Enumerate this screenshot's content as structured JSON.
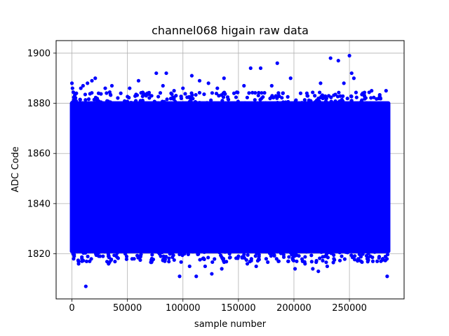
{
  "chart_data": {
    "type": "scatter",
    "title": "channel068 higain raw data",
    "xlabel": "sample number",
    "ylabel": "ADC Code",
    "xlim": [
      -14250,
      299250
    ],
    "ylim": [
      1802,
      1905
    ],
    "x_ticks": [
      0,
      50000,
      100000,
      150000,
      200000,
      250000
    ],
    "y_ticks": [
      1820,
      1840,
      1860,
      1880,
      1900
    ],
    "grid": true,
    "marker_color": "#0000ff",
    "dense_band": {
      "x_range": [
        0,
        285000
      ],
      "y_range": [
        1821,
        1880
      ],
      "note_values": "data points span samples 0 to ~285000 with ADC codes densely filling ~1821–1880"
    },
    "points": [
      [
        0,
        1888
      ],
      [
        500,
        1886
      ],
      [
        1500,
        1818
      ],
      [
        2000,
        1819
      ],
      [
        4000,
        1884
      ],
      [
        6000,
        1816
      ],
      [
        8000,
        1886
      ],
      [
        9000,
        1818
      ],
      [
        10000,
        1887
      ],
      [
        12500,
        1807
      ],
      [
        14000,
        1888
      ],
      [
        16000,
        1817
      ],
      [
        18000,
        1889
      ],
      [
        20000,
        1821
      ],
      [
        21000,
        1890
      ],
      [
        24000,
        1884
      ],
      [
        28000,
        1819
      ],
      [
        30000,
        1886
      ],
      [
        33000,
        1816
      ],
      [
        36000,
        1887
      ],
      [
        40000,
        1819
      ],
      [
        44000,
        1884
      ],
      [
        48000,
        1820
      ],
      [
        52000,
        1886
      ],
      [
        56000,
        1818
      ],
      [
        60000,
        1889
      ],
      [
        64000,
        1821
      ],
      [
        68000,
        1884
      ],
      [
        72000,
        1817
      ],
      [
        76000,
        1892
      ],
      [
        80000,
        1819
      ],
      [
        82000,
        1887
      ],
      [
        85000,
        1892
      ],
      [
        88000,
        1821
      ],
      [
        92000,
        1885
      ],
      [
        97000,
        1811
      ],
      [
        100000,
        1886
      ],
      [
        106000,
        1815
      ],
      [
        108000,
        1891
      ],
      [
        112000,
        1811
      ],
      [
        115000,
        1889
      ],
      [
        120000,
        1815
      ],
      [
        123000,
        1888
      ],
      [
        126000,
        1812
      ],
      [
        131000,
        1886
      ],
      [
        135000,
        1814
      ],
      [
        137000,
        1890
      ],
      [
        142000,
        1820
      ],
      [
        146000,
        1884
      ],
      [
        150000,
        1819
      ],
      [
        155000,
        1887
      ],
      [
        158000,
        1816
      ],
      [
        161000,
        1894
      ],
      [
        166000,
        1815
      ],
      [
        170000,
        1894
      ],
      [
        175000,
        1818
      ],
      [
        180000,
        1887
      ],
      [
        185000,
        1896
      ],
      [
        186000,
        1817
      ],
      [
        190000,
        1884
      ],
      [
        195000,
        1817
      ],
      [
        197000,
        1890
      ],
      [
        201000,
        1814
      ],
      [
        206000,
        1884
      ],
      [
        210000,
        1816
      ],
      [
        212000,
        1883
      ],
      [
        217000,
        1814
      ],
      [
        222000,
        1813
      ],
      [
        224000,
        1888
      ],
      [
        230000,
        1815
      ],
      [
        233000,
        1898
      ],
      [
        236000,
        1818
      ],
      [
        240000,
        1897
      ],
      [
        243000,
        1819
      ],
      [
        245000,
        1888
      ],
      [
        250000,
        1899
      ],
      [
        252000,
        1892
      ],
      [
        254000,
        1890
      ],
      [
        258000,
        1818
      ],
      [
        262000,
        1884
      ],
      [
        266000,
        1818
      ],
      [
        270000,
        1885
      ],
      [
        275000,
        1817
      ],
      [
        278000,
        1882
      ],
      [
        280000,
        1818
      ],
      [
        283000,
        1885
      ],
      [
        284000,
        1811
      ]
    ]
  }
}
